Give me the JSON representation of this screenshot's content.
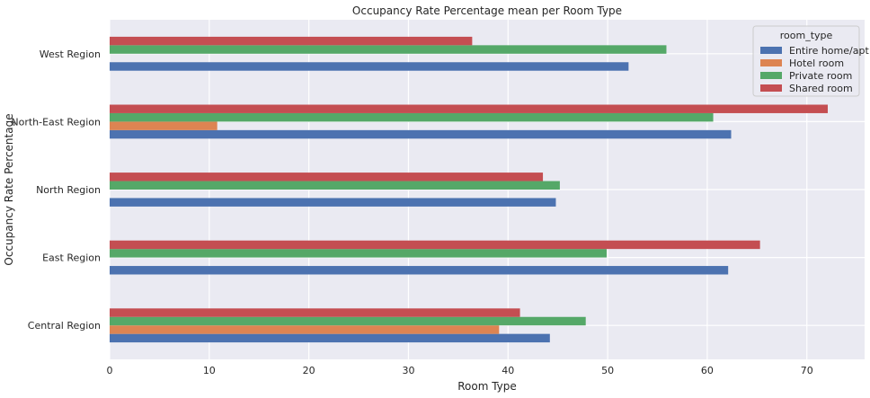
{
  "chart_data": {
    "type": "bar",
    "orientation": "horizontal",
    "title": "Occupancy Rate Percentage mean per Room Type",
    "xlabel": "Room Type",
    "ylabel": "Occupancy Rate Percentage",
    "xlim": [
      0,
      75.8
    ],
    "xticks": [
      "0",
      "10",
      "20",
      "30",
      "40",
      "50",
      "60",
      "70"
    ],
    "grid": true,
    "legend_title": "room_type",
    "legend_position": "top-right",
    "categories": [
      "Central Region",
      "East Region",
      "North Region",
      "North-East Region",
      "West Region"
    ],
    "series": [
      {
        "name": "Entire home/apt",
        "color": "#4c72b0",
        "values": [
          44.2,
          62.1,
          44.8,
          62.4,
          52.1
        ]
      },
      {
        "name": "Hotel room",
        "color": "#dd8452",
        "values": [
          39.1,
          null,
          null,
          10.8,
          null
        ]
      },
      {
        "name": "Private room",
        "color": "#55a868",
        "values": [
          47.8,
          49.9,
          45.2,
          60.6,
          55.9
        ]
      },
      {
        "name": "Shared room",
        "color": "#c44e52",
        "values": [
          41.2,
          65.3,
          43.5,
          72.1,
          36.4
        ]
      }
    ]
  }
}
